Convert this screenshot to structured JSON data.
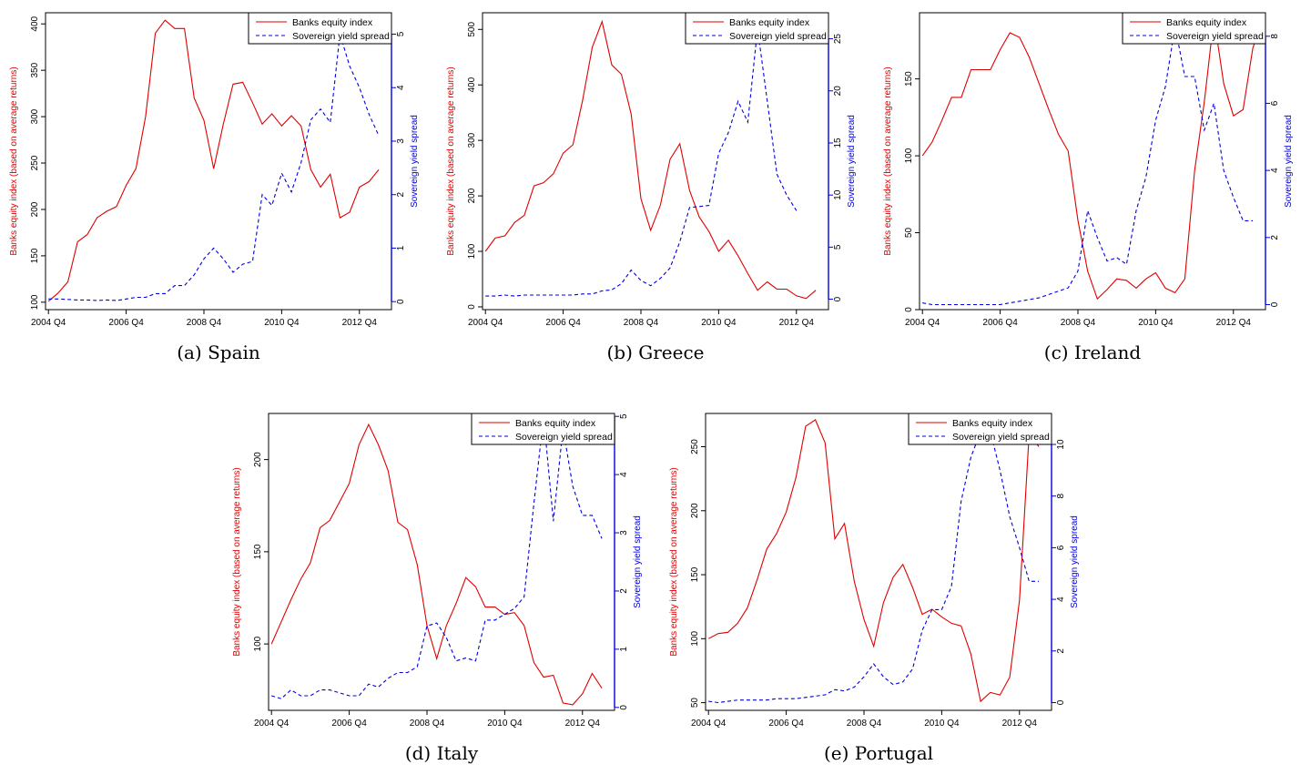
{
  "chart_data": [
    {
      "type": "line",
      "caption": "(a) Spain",
      "xlabels": [
        "2004 Q4",
        "2006 Q4",
        "2008 Q4",
        "2010 Q4",
        "2012 Q4"
      ],
      "left_axis": {
        "label": "Banks equity index (based on average returns)",
        "color": "#e00000",
        "ticks": [
          100,
          150,
          200,
          250,
          300,
          350,
          400
        ],
        "ylim": [
          92,
          412
        ]
      },
      "right_axis": {
        "label": "Sovereign yield spread",
        "color": "#0000e0",
        "ticks": [
          0,
          1,
          2,
          3,
          4,
          5
        ],
        "ylim": [
          -0.15,
          5.4
        ]
      },
      "legend": [
        "Banks equity index",
        "Sovereign yield spread"
      ],
      "series": [
        {
          "name": "Banks equity index",
          "axis": "left",
          "values": [
            101,
            110,
            122,
            165,
            173,
            191,
            198,
            203,
            226,
            244,
            300,
            390,
            404,
            395,
            395,
            320,
            296,
            244,
            292,
            335,
            337,
            315,
            292,
            303,
            290,
            301,
            290,
            243,
            224,
            238,
            191,
            197,
            224,
            230,
            243
          ]
        },
        {
          "name": "Sovereign yield spread",
          "axis": "right",
          "values": [
            0.05,
            0.05,
            0.04,
            0.03,
            0.03,
            0.02,
            0.03,
            0.02,
            0.05,
            0.08,
            0.08,
            0.15,
            0.15,
            0.3,
            0.3,
            0.5,
            0.8,
            1.0,
            0.8,
            0.55,
            0.7,
            0.75,
            2.0,
            1.8,
            2.4,
            2.05,
            2.6,
            3.4,
            3.6,
            3.35,
            5.0,
            4.4,
            4.0,
            3.5,
            3.1
          ]
        }
      ]
    },
    {
      "type": "line",
      "caption": "(b) Greece",
      "xlabels": [
        "2004 Q4",
        "2006 Q4",
        "2008 Q4",
        "2010 Q4",
        "2012 Q4"
      ],
      "left_axis": {
        "label": "Banks equity index (based on average returns)",
        "color": "#e00000",
        "ticks": [
          0,
          100,
          200,
          300,
          400,
          500
        ],
        "ylim": [
          -5,
          530
        ]
      },
      "right_axis": {
        "label": "Sovereign yield spread",
        "color": "#0000e0",
        "ticks": [
          0,
          5,
          10,
          15,
          20,
          25
        ],
        "ylim": [
          -1,
          27.5
        ]
      },
      "legend": [
        "Banks equity index",
        "Sovereign yield spread"
      ],
      "series": [
        {
          "name": "Banks equity index",
          "axis": "left",
          "values": [
            100,
            124,
            128,
            152,
            165,
            218,
            224,
            240,
            277,
            292,
            372,
            468,
            514,
            436,
            419,
            347,
            195,
            138,
            183,
            266,
            294,
            210,
            162,
            136,
            100,
            120,
            92,
            60,
            30,
            45,
            32,
            32,
            20,
            15,
            30
          ]
        },
        {
          "name": "Sovereign yield spread",
          "axis": "right",
          "values": [
            0.3,
            0.3,
            0.4,
            0.3,
            0.4,
            0.4,
            0.4,
            0.4,
            0.4,
            0.4,
            0.5,
            0.5,
            0.8,
            0.9,
            1.5,
            2.8,
            1.8,
            1.3,
            2.0,
            3.0,
            5.5,
            8.8,
            8.9,
            9.0,
            14.0,
            16.0,
            19.0,
            17.0,
            26.0,
            19.0,
            12.0,
            10.0,
            8.5
          ]
        }
      ]
    },
    {
      "type": "line",
      "caption": "(c) Ireland",
      "xlabels": [
        "2004 Q4",
        "2006 Q4",
        "2008 Q4",
        "2010 Q4",
        "2012 Q4"
      ],
      "left_axis": {
        "label": "Banks equity index (based on average returns)",
        "color": "#e00000",
        "ticks": [
          0,
          50,
          100,
          150
        ],
        "ylim": [
          0,
          193
        ]
      },
      "right_axis": {
        "label": "Sovereign yield spread",
        "color": "#0000e0",
        "ticks": [
          0,
          2,
          4,
          6,
          8
        ],
        "ylim": [
          -0.15,
          8.7
        ]
      },
      "legend": [
        "Banks equity index",
        "Sovereign yield spread"
      ],
      "series": [
        {
          "name": "Banks equity index",
          "axis": "left",
          "values": [
            100,
            109,
            123,
            138,
            138,
            156,
            156,
            156,
            169,
            180,
            177,
            164,
            147,
            130,
            114,
            103,
            58,
            25,
            7,
            13,
            20,
            19,
            14,
            20,
            24,
            14,
            11,
            20,
            90,
            135,
            190,
            147,
            126,
            130,
            170,
            188
          ]
        },
        {
          "name": "Sovereign yield spread",
          "axis": "right",
          "values": [
            0.05,
            0.0,
            0.0,
            0.0,
            0.0,
            0.0,
            0.0,
            0.0,
            0.0,
            0.05,
            0.1,
            0.15,
            0.2,
            0.3,
            0.4,
            0.5,
            1.0,
            2.8,
            2.0,
            1.3,
            1.4,
            1.2,
            2.8,
            3.8,
            5.5,
            6.5,
            8.3,
            6.8,
            6.8,
            5.2,
            6.0,
            4.0,
            3.2,
            2.5,
            2.5
          ]
        }
      ]
    },
    {
      "type": "line",
      "caption": "(d) Italy",
      "xlabels": [
        "2004 Q4",
        "2006 Q4",
        "2008 Q4",
        "2010 Q4",
        "2012 Q4"
      ],
      "left_axis": {
        "label": "Banks equity index (based on average returns)",
        "color": "#e00000",
        "ticks": [
          100,
          150,
          200
        ],
        "ylim": [
          64,
          225
        ]
      },
      "right_axis": {
        "label": "Sovereign yield spread",
        "color": "#0000e0",
        "ticks": [
          0,
          1,
          2,
          3,
          4,
          5
        ],
        "ylim": [
          -0.05,
          5.05
        ]
      },
      "legend": [
        "Banks equity index",
        "Sovereign yield spread"
      ],
      "series": [
        {
          "name": "Banks equity index",
          "axis": "left",
          "values": [
            100,
            112,
            124,
            135,
            144,
            163,
            167,
            177,
            187,
            208,
            219,
            208,
            194,
            166,
            162,
            143,
            110,
            92,
            110,
            122,
            136,
            131,
            120,
            120,
            116,
            117,
            110,
            90,
            82,
            83,
            68,
            67,
            73,
            84,
            76
          ]
        },
        {
          "name": "Sovereign yield spread",
          "axis": "right",
          "values": [
            0.2,
            0.15,
            0.3,
            0.2,
            0.2,
            0.3,
            0.3,
            0.25,
            0.2,
            0.2,
            0.4,
            0.35,
            0.5,
            0.6,
            0.6,
            0.7,
            1.4,
            1.45,
            1.2,
            0.8,
            0.85,
            0.8,
            1.5,
            1.5,
            1.6,
            1.7,
            1.9,
            3.5,
            5.0,
            3.2,
            4.8,
            3.8,
            3.3,
            3.3,
            2.9
          ]
        }
      ]
    },
    {
      "type": "line",
      "caption": "(e) Portugal",
      "xlabels": [
        "2004 Q4",
        "2006 Q4",
        "2008 Q4",
        "2010 Q4",
        "2012 Q4"
      ],
      "left_axis": {
        "label": "Banks equity index (based on average returns)",
        "color": "#e00000",
        "ticks": [
          50,
          100,
          150,
          200,
          250
        ],
        "ylim": [
          44,
          276
        ]
      },
      "right_axis": {
        "label": "Sovereign yield spread",
        "color": "#0000e0",
        "ticks": [
          0,
          2,
          4,
          6,
          8,
          10
        ],
        "ylim": [
          -0.3,
          11.2
        ]
      },
      "legend": [
        "Banks equity index",
        "Sovereign yield spread"
      ],
      "series": [
        {
          "name": "Banks equity index",
          "axis": "left",
          "values": [
            100,
            104,
            105,
            112,
            124,
            146,
            170,
            182,
            199,
            226,
            266,
            271,
            253,
            178,
            190,
            145,
            115,
            94,
            128,
            148,
            158,
            140,
            119,
            123,
            117,
            112,
            110,
            88,
            51,
            58,
            56,
            70,
            130,
            260,
            250
          ]
        },
        {
          "name": "Sovereign yield spread",
          "axis": "right",
          "values": [
            0.05,
            0.0,
            0.05,
            0.1,
            0.1,
            0.1,
            0.1,
            0.15,
            0.15,
            0.15,
            0.2,
            0.25,
            0.3,
            0.5,
            0.45,
            0.6,
            1.0,
            1.5,
            1.0,
            0.7,
            0.8,
            1.3,
            2.8,
            3.6,
            3.6,
            4.5,
            7.8,
            9.5,
            10.5,
            10.5,
            9.0,
            7.2,
            6.0,
            4.7,
            4.7
          ]
        }
      ]
    }
  ]
}
